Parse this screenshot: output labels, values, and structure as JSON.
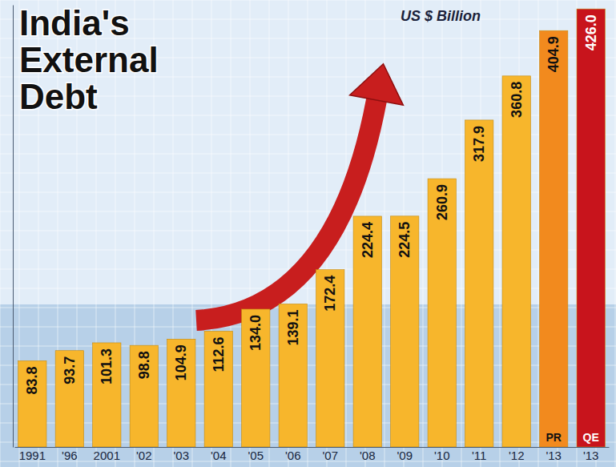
{
  "chart_data": {
    "type": "bar",
    "title": "India's External Debt",
    "subtitle": "US $ Billion",
    "categories": [
      "1991",
      "'96",
      "2001",
      "'02",
      "'03",
      "'04",
      "'05",
      "'06",
      "'07",
      "'08",
      "'09",
      "'10",
      "'11",
      "'12",
      "'13",
      "'13"
    ],
    "values": [
      83.8,
      93.7,
      101.3,
      98.8,
      104.9,
      112.6,
      134.0,
      139.1,
      172.4,
      224.4,
      224.5,
      260.9,
      317.9,
      360.8,
      404.9,
      426.0
    ],
    "value_labels": [
      "83.8",
      "93.7",
      "101.3",
      "98.8",
      "104.9",
      "112.6",
      "134.0",
      "139.1",
      "172.4",
      "224.4",
      "224.5",
      "260.9",
      "317.9",
      "360.8",
      "404.9",
      "426.0"
    ],
    "colors": [
      "#f7b62c",
      "#f7b62c",
      "#f7b62c",
      "#f7b62c",
      "#f7b62c",
      "#f7b62c",
      "#f7b62c",
      "#f7b62c",
      "#f7b62c",
      "#f7b62c",
      "#f7b62c",
      "#f7b62c",
      "#f7b62c",
      "#f7b62c",
      "#f28a1e",
      "#c8141c"
    ],
    "annotations": [
      {
        "text": "PR",
        "at": 14
      },
      {
        "text": "QE",
        "at": 15
      }
    ],
    "ylim": [
      0,
      430
    ],
    "data_labels": true,
    "tick_labels": "x"
  }
}
